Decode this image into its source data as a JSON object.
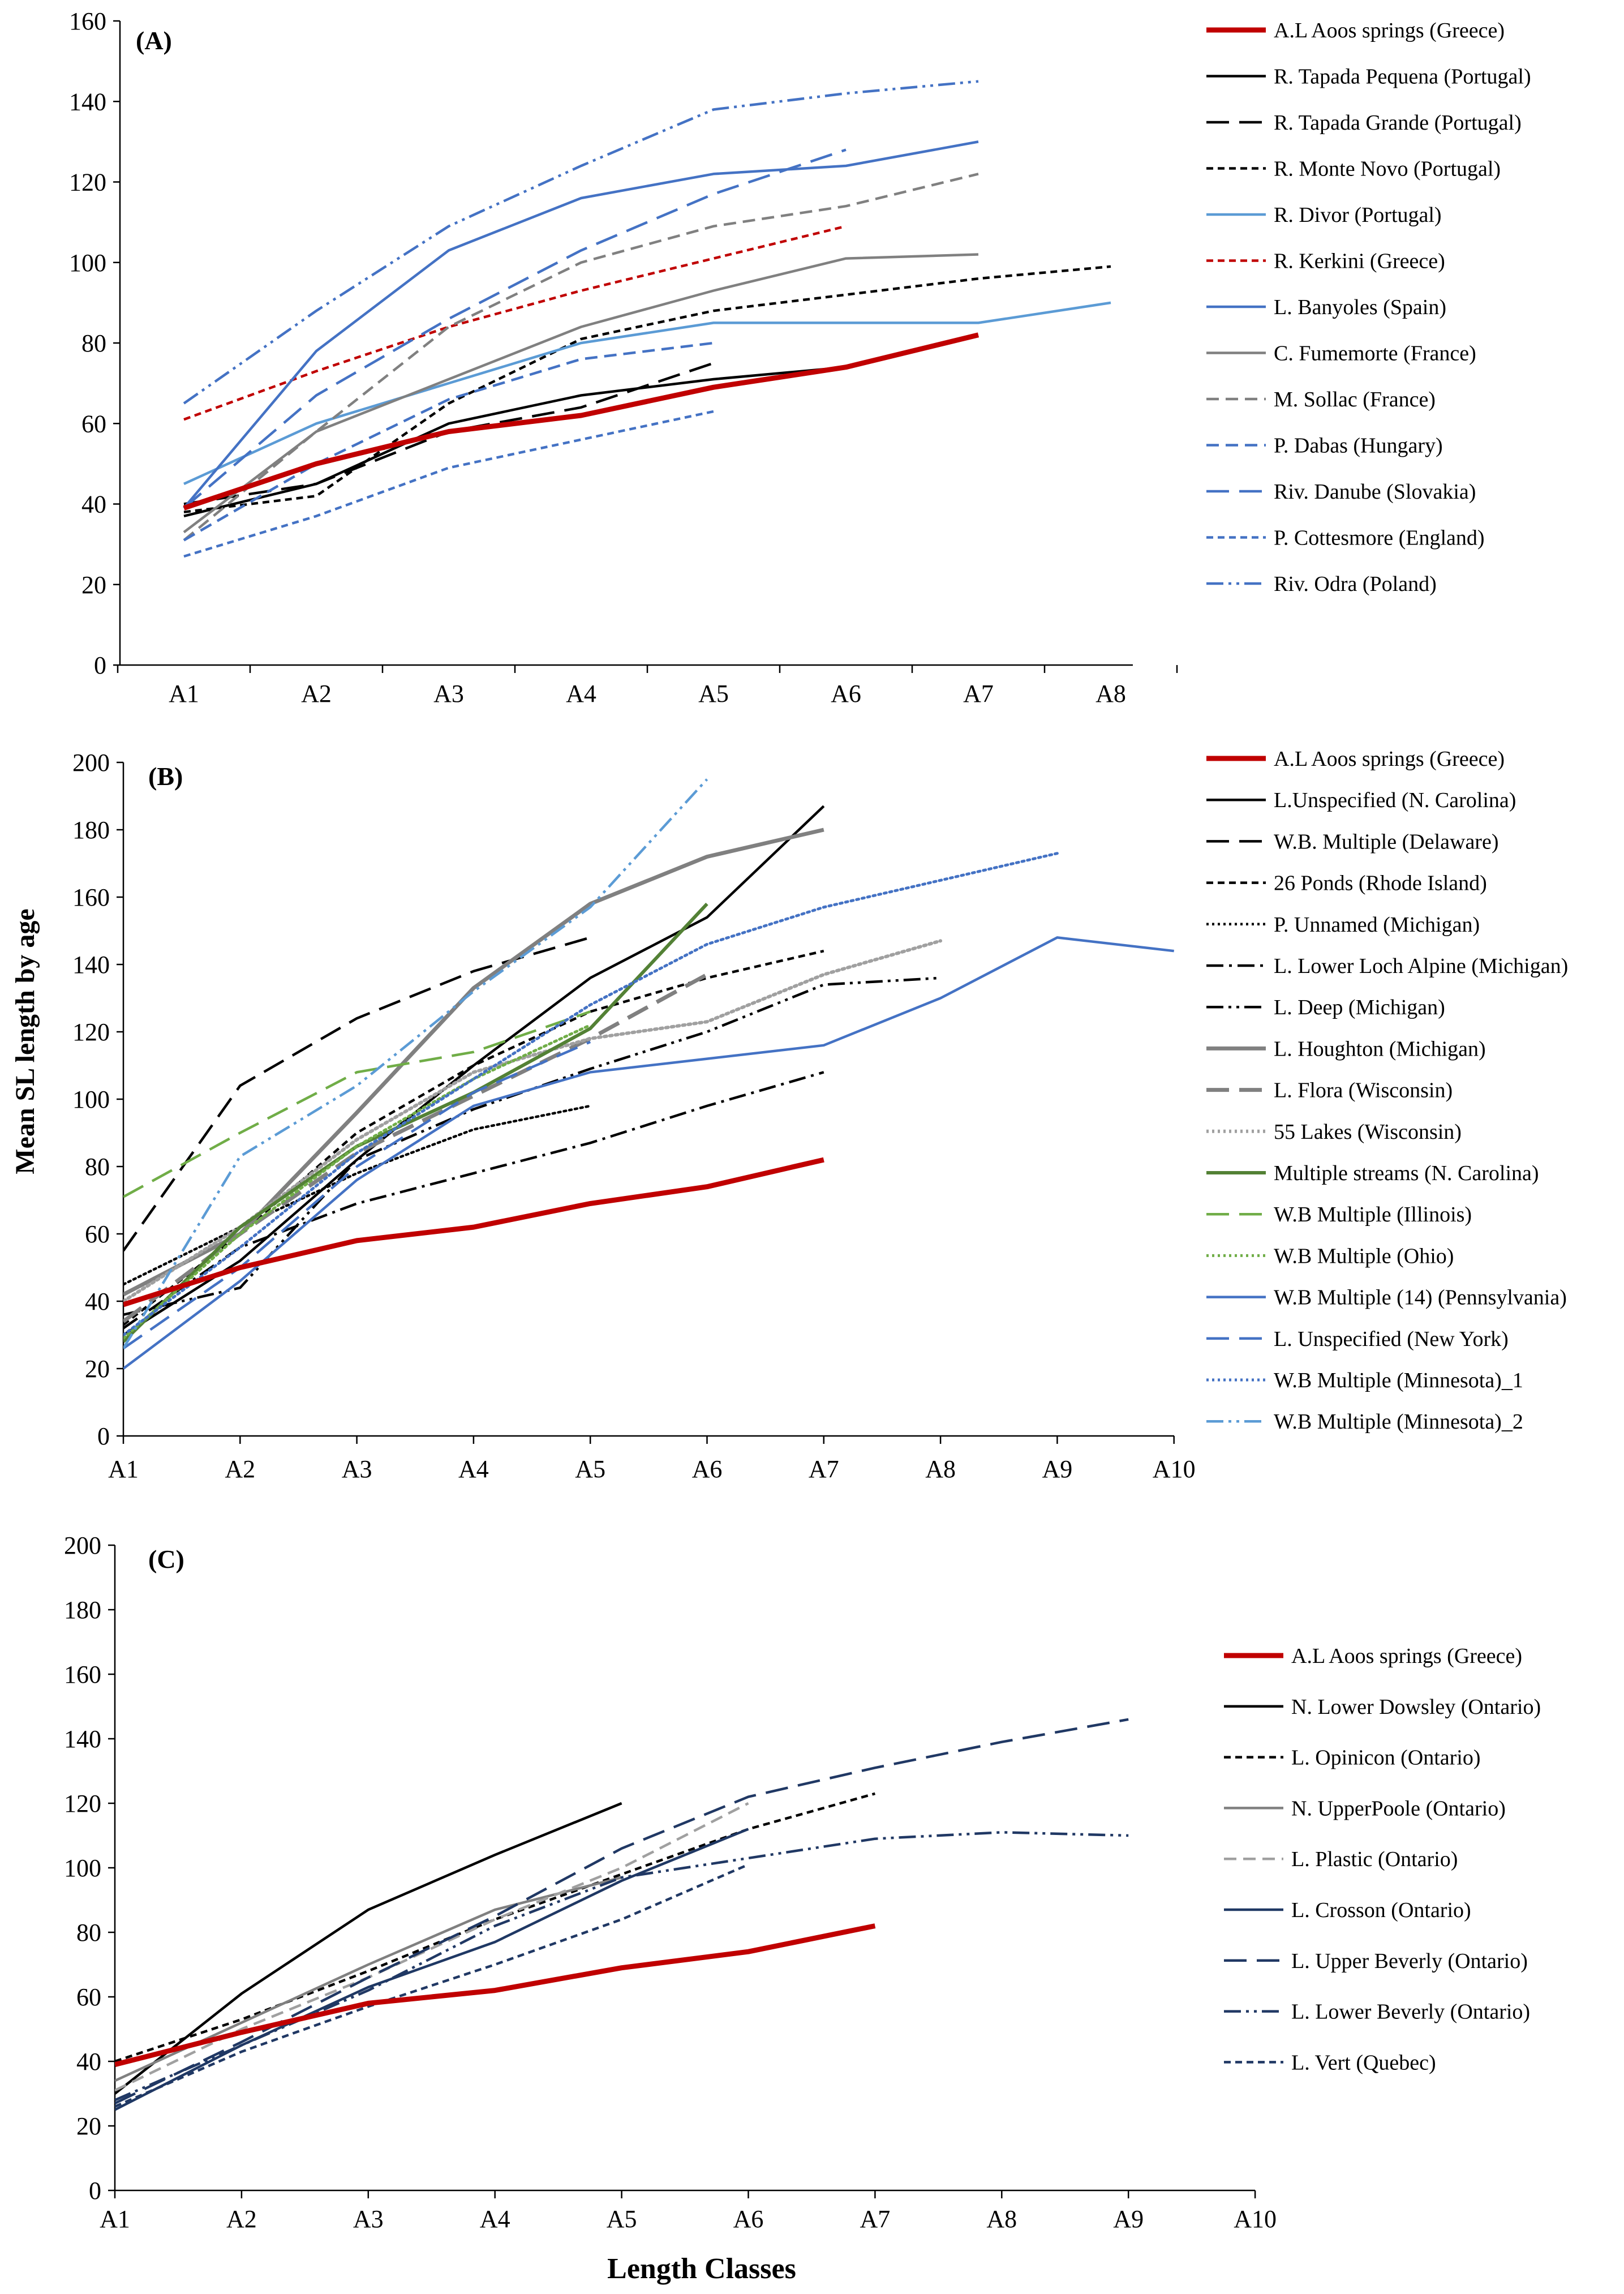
{
  "figure": {
    "ylabel": "Mean  SL length by age",
    "xlabel": "Length Classes"
  },
  "chart_data": [
    {
      "type": "line",
      "panel": "(A)",
      "categories": [
        "A1",
        "A2",
        "A3",
        "A4",
        "A5",
        "A6",
        "A7",
        "A8"
      ],
      "ylim": [
        0,
        160
      ],
      "yticks": [
        0,
        20,
        40,
        60,
        80,
        100,
        120,
        140,
        160
      ],
      "series": [
        {
          "name": "A.L Aoos springs (Greece)",
          "values": [
            39,
            50,
            58,
            62,
            69,
            74,
            82,
            null
          ],
          "color": "#c00000",
          "dash": "solid",
          "width": 9
        },
        {
          "name": "R. Tapada Pequena (Portugal)",
          "values": [
            37,
            45,
            60,
            67,
            71,
            74,
            null,
            null
          ],
          "color": "#000000",
          "dash": "solid",
          "width": 4.5
        },
        {
          "name": "R. Tapada Grande (Portugal)",
          "values": [
            40,
            45,
            58,
            64,
            75,
            null,
            null,
            null
          ],
          "color": "#000000",
          "dash": "longdash",
          "width": 4.5
        },
        {
          "name": "R. Monte Novo (Portugal)",
          "values": [
            38,
            42,
            65,
            81,
            88,
            92,
            96,
            99
          ],
          "color": "#000000",
          "dash": "shortdash",
          "width": 4.5
        },
        {
          "name": "R. Divor (Portugal)",
          "values": [
            45,
            60,
            70,
            80,
            85,
            85,
            85,
            90
          ],
          "color": "#5b9bd5",
          "dash": "solid",
          "width": 4.5
        },
        {
          "name": "R. Kerkini (Greece)",
          "values": [
            61,
            73,
            84,
            93,
            101,
            109,
            null,
            null
          ],
          "color": "#c00000",
          "dash": "shortdash",
          "width": 4.5
        },
        {
          "name": "L. Banyoles (Spain)",
          "values": [
            39,
            78,
            103,
            116,
            122,
            124,
            130,
            null
          ],
          "color": "#4472c4",
          "dash": "solid",
          "width": 4.5
        },
        {
          "name": "C. Fumemorte (France)",
          "values": [
            33,
            58,
            71,
            84,
            93,
            101,
            102,
            null
          ],
          "color": "#808080",
          "dash": "solid",
          "width": 4.5
        },
        {
          "name": "M. Sollac (France)",
          "values": [
            31,
            58,
            84,
            100,
            109,
            114,
            122,
            null
          ],
          "color": "#808080",
          "dash": "dash",
          "width": 4.5
        },
        {
          "name": "P. Dabas (Hungary)",
          "values": [
            31,
            50,
            66,
            76,
            80,
            null,
            null,
            null
          ],
          "color": "#4472c4",
          "dash": "dash",
          "width": 4.5
        },
        {
          "name": "Riv. Danube (Slovakia)",
          "values": [
            39,
            67,
            86,
            103,
            117,
            128,
            null,
            null
          ],
          "color": "#4472c4",
          "dash": "longdash",
          "width": 4.5
        },
        {
          "name": "P. Cottesmore (England)",
          "values": [
            27,
            37,
            49,
            56,
            63,
            null,
            null,
            null
          ],
          "color": "#4472c4",
          "dash": "shortdash",
          "width": 4.5
        },
        {
          "name": "Riv. Odra (Poland)",
          "values": [
            65,
            88,
            109,
            124,
            138,
            142,
            145,
            null
          ],
          "color": "#4472c4",
          "dash": "dashdotdot",
          "width": 4.5
        }
      ]
    },
    {
      "type": "line",
      "panel": "(B)",
      "categories": [
        "A1",
        "A2",
        "A3",
        "A4",
        "A5",
        "A6",
        "A7",
        "A8",
        "A9",
        "A10"
      ],
      "ylim": [
        0,
        200
      ],
      "yticks": [
        0,
        20,
        40,
        60,
        80,
        100,
        120,
        140,
        160,
        180,
        200
      ],
      "series": [
        {
          "name": "A.L Aoos springs (Greece)",
          "values": [
            39,
            50,
            58,
            62,
            69,
            74,
            82,
            null,
            null,
            null
          ],
          "color": "#c00000",
          "dash": "solid",
          "width": 9
        },
        {
          "name": "L.Unspecified (N. Carolina)",
          "values": [
            30,
            52,
            82,
            110,
            136,
            154,
            187,
            null,
            null,
            null
          ],
          "color": "#000000",
          "dash": "solid",
          "width": 4.5
        },
        {
          "name": "W.B. Multiple (Delaware)",
          "values": [
            55,
            104,
            124,
            138,
            148,
            null,
            null,
            null,
            null,
            null
          ],
          "color": "#000000",
          "dash": "longdash",
          "width": 4.5
        },
        {
          "name": "26 Ponds (Rhode Island)",
          "values": [
            33,
            60,
            90,
            110,
            126,
            136,
            144,
            null,
            null,
            null
          ],
          "color": "#000000",
          "dash": "shortdash",
          "width": 4.5
        },
        {
          "name": "P. Unnamed (Michigan)",
          "values": [
            45,
            62,
            78,
            91,
            98,
            null,
            null,
            null,
            null,
            null
          ],
          "color": "#000000",
          "dash": "dot",
          "width": 4.5
        },
        {
          "name": "L. Lower Loch Alpine (Michigan)",
          "values": [
            32,
            56,
            69,
            78,
            87,
            98,
            108,
            null,
            null,
            null
          ],
          "color": "#000000",
          "dash": "dashdot",
          "width": 4.5
        },
        {
          "name": "L. Deep (Michigan)",
          "values": [
            36,
            44,
            82,
            97,
            109,
            120,
            134,
            136,
            null,
            null
          ],
          "color": "#000000",
          "dash": "dashdotdot",
          "width": 4.5
        },
        {
          "name": "L. Houghton (Michigan)",
          "values": [
            42,
            60,
            96,
            133,
            158,
            172,
            180,
            null,
            null,
            null
          ],
          "color": "#808080",
          "dash": "solid",
          "width": 7
        },
        {
          "name": "L. Flora (Wisconsin)",
          "values": [
            34,
            60,
            84,
            101,
            118,
            137,
            null,
            null,
            null,
            null
          ],
          "color": "#808080",
          "dash": "longdash",
          "width": 7
        },
        {
          "name": "55 Lakes (Wisconsin)",
          "values": [
            40,
            62,
            88,
            108,
            118,
            123,
            137,
            147,
            null,
            null
          ],
          "color": "#a0a0a0",
          "dash": "dot",
          "width": 6
        },
        {
          "name": "Multiple streams (N. Carolina)",
          "values": [
            28,
            62,
            86,
            102,
            121,
            158,
            null,
            null,
            null,
            null
          ],
          "color": "#538135",
          "dash": "solid",
          "width": 6
        },
        {
          "name": "W.B Multiple (Illinois)",
          "values": [
            71,
            90,
            108,
            114,
            126,
            null,
            null,
            null,
            null,
            null
          ],
          "color": "#70ad47",
          "dash": "longdash",
          "width": 4.5
        },
        {
          "name": "W.B Multiple (Ohio)",
          "values": [
            29,
            60,
            86,
            106,
            122,
            null,
            null,
            null,
            null,
            null
          ],
          "color": "#70ad47",
          "dash": "dot",
          "width": 5
        },
        {
          "name": "W.B Multiple (14) (Pennsylvania)",
          "values": [
            20,
            46,
            76,
            98,
            108,
            112,
            116,
            130,
            148,
            144
          ],
          "color": "#4472c4",
          "dash": "solid",
          "width": 4.5
        },
        {
          "name": "L. Unspecified (New York)",
          "values": [
            26,
            50,
            80,
            102,
            117,
            null,
            null,
            null,
            null,
            null
          ],
          "color": "#4472c4",
          "dash": "longdash",
          "width": 4.5
        },
        {
          "name": "W.B Multiple (Minnesota)_1",
          "values": [
            30,
            56,
            84,
            106,
            128,
            146,
            157,
            165,
            173,
            null
          ],
          "color": "#4472c4",
          "dash": "dot",
          "width": 5
        },
        {
          "name": "W.B Multiple (Minnesota)_2",
          "values": [
            26,
            83,
            104,
            132,
            157,
            195,
            null,
            null,
            null,
            null
          ],
          "color": "#5b9bd5",
          "dash": "dashdotdot",
          "width": 4.5
        }
      ]
    },
    {
      "type": "line",
      "panel": "(C)",
      "categories": [
        "A1",
        "A2",
        "A3",
        "A4",
        "A5",
        "A6",
        "A7",
        "A8",
        "A9",
        "A10"
      ],
      "ylim": [
        0,
        200
      ],
      "yticks": [
        0,
        20,
        40,
        60,
        80,
        100,
        120,
        140,
        160,
        180,
        200
      ],
      "series": [
        {
          "name": "A.L Aoos springs (Greece)",
          "values": [
            39,
            49,
            58,
            62,
            69,
            74,
            82,
            null,
            null,
            null
          ],
          "color": "#c00000",
          "dash": "solid",
          "width": 9
        },
        {
          "name": "N. Lower Dowsley (Ontario)",
          "values": [
            30,
            61,
            87,
            104,
            120,
            null,
            null,
            null,
            null,
            null
          ],
          "color": "#000000",
          "dash": "solid",
          "width": 4.5
        },
        {
          "name": "L. Opinicon (Ontario)",
          "values": [
            40,
            53,
            68,
            84,
            98,
            112,
            123,
            null,
            null,
            null
          ],
          "color": "#000000",
          "dash": "shortdash",
          "width": 4.5
        },
        {
          "name": "N. UpperPoole (Ontario)",
          "values": [
            34,
            52,
            70,
            87,
            97,
            null,
            null,
            null,
            null,
            null
          ],
          "color": "#808080",
          "dash": "solid",
          "width": 4.5
        },
        {
          "name": "L. Plastic  (Ontario)",
          "values": [
            31,
            50,
            66,
            84,
            100,
            120,
            null,
            null,
            null,
            null
          ],
          "color": "#a0a0a0",
          "dash": "dash",
          "width": 4.5
        },
        {
          "name": "L. Crosson (Ontario)",
          "values": [
            25,
            45,
            63,
            77,
            96,
            112,
            null,
            null,
            null,
            null
          ],
          "color": "#1f3864",
          "dash": "solid",
          "width": 4.5
        },
        {
          "name": "L. Upper Beverly (Ontario)",
          "values": [
            27,
            46,
            66,
            85,
            106,
            122,
            131,
            139,
            146,
            null
          ],
          "color": "#203864",
          "dash": "longdash",
          "width": 4.5
        },
        {
          "name": "L. Lower Beverly (Ontario)",
          "values": [
            28,
            45,
            62,
            82,
            97,
            103,
            109,
            111,
            110,
            null
          ],
          "color": "#203864",
          "dash": "dashdotdot",
          "width": 4.5
        },
        {
          "name": "L. Vert (Quebec)",
          "values": [
            26,
            43,
            57,
            70,
            84,
            101,
            null,
            null,
            null,
            null
          ],
          "color": "#203864",
          "dash": "shortdash",
          "width": 4.5
        }
      ]
    }
  ]
}
